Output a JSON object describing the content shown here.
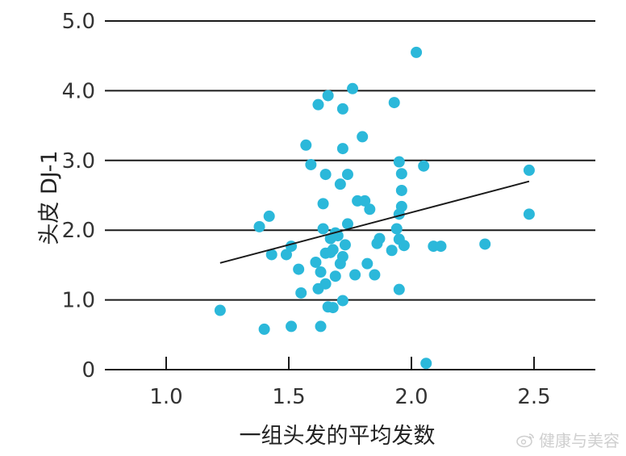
{
  "chart_data": {
    "type": "scatter",
    "xlabel": "一组头发的平均发数",
    "ylabel": "头皮 DJ-1",
    "xlim": [
      0.75,
      2.75
    ],
    "ylim": [
      0,
      5.0
    ],
    "x_ticks": [
      1.0,
      1.5,
      2.0,
      2.5
    ],
    "x_tick_labels": [
      "1.0",
      "1.5",
      "2.0",
      "2.5"
    ],
    "y_ticks": [
      0,
      1.0,
      2.0,
      3.0,
      4.0,
      5.0
    ],
    "y_tick_labels": [
      "0",
      "1.0",
      "2.0",
      "3.0",
      "4.0",
      "5.0"
    ],
    "grid": "horizontal",
    "colors": {
      "points": "#2bb8da",
      "trend": "#1a1a1a",
      "grid": "#1a1a1a",
      "text": "#333333"
    },
    "points": [
      {
        "x": 1.22,
        "y": 0.85
      },
      {
        "x": 1.38,
        "y": 2.05
      },
      {
        "x": 1.4,
        "y": 0.58
      },
      {
        "x": 1.42,
        "y": 2.2
      },
      {
        "x": 1.43,
        "y": 1.65
      },
      {
        "x": 1.49,
        "y": 1.65
      },
      {
        "x": 1.51,
        "y": 1.77
      },
      {
        "x": 1.51,
        "y": 0.62
      },
      {
        "x": 1.54,
        "y": 1.44
      },
      {
        "x": 1.55,
        "y": 1.1
      },
      {
        "x": 1.57,
        "y": 3.22
      },
      {
        "x": 1.59,
        "y": 2.94
      },
      {
        "x": 1.61,
        "y": 1.54
      },
      {
        "x": 1.62,
        "y": 3.8
      },
      {
        "x": 1.62,
        "y": 1.16
      },
      {
        "x": 1.63,
        "y": 0.62
      },
      {
        "x": 1.63,
        "y": 1.4
      },
      {
        "x": 1.64,
        "y": 2.38
      },
      {
        "x": 1.64,
        "y": 2.02
      },
      {
        "x": 1.65,
        "y": 2.8
      },
      {
        "x": 1.65,
        "y": 1.67
      },
      {
        "x": 1.65,
        "y": 1.23
      },
      {
        "x": 1.66,
        "y": 3.93
      },
      {
        "x": 1.66,
        "y": 0.9
      },
      {
        "x": 1.67,
        "y": 1.88
      },
      {
        "x": 1.67,
        "y": 1.68
      },
      {
        "x": 1.68,
        "y": 1.72
      },
      {
        "x": 1.68,
        "y": 0.89
      },
      {
        "x": 1.69,
        "y": 1.96
      },
      {
        "x": 1.69,
        "y": 1.34
      },
      {
        "x": 1.7,
        "y": 1.92
      },
      {
        "x": 1.71,
        "y": 2.66
      },
      {
        "x": 1.71,
        "y": 1.52
      },
      {
        "x": 1.72,
        "y": 3.74
      },
      {
        "x": 1.72,
        "y": 3.17
      },
      {
        "x": 1.72,
        "y": 1.62
      },
      {
        "x": 1.72,
        "y": 0.99
      },
      {
        "x": 1.73,
        "y": 1.79
      },
      {
        "x": 1.74,
        "y": 2.8
      },
      {
        "x": 1.74,
        "y": 2.09
      },
      {
        "x": 1.76,
        "y": 4.03
      },
      {
        "x": 1.77,
        "y": 1.36
      },
      {
        "x": 1.78,
        "y": 2.42
      },
      {
        "x": 1.8,
        "y": 3.34
      },
      {
        "x": 1.81,
        "y": 2.42
      },
      {
        "x": 1.82,
        "y": 1.52
      },
      {
        "x": 1.83,
        "y": 2.3
      },
      {
        "x": 1.85,
        "y": 1.36
      },
      {
        "x": 1.86,
        "y": 1.81
      },
      {
        "x": 1.87,
        "y": 1.88
      },
      {
        "x": 1.92,
        "y": 1.71
      },
      {
        "x": 1.93,
        "y": 3.83
      },
      {
        "x": 1.94,
        "y": 2.02
      },
      {
        "x": 1.95,
        "y": 2.98
      },
      {
        "x": 1.95,
        "y": 2.23
      },
      {
        "x": 1.95,
        "y": 1.87
      },
      {
        "x": 1.95,
        "y": 1.15
      },
      {
        "x": 1.96,
        "y": 2.81
      },
      {
        "x": 1.96,
        "y": 2.57
      },
      {
        "x": 1.96,
        "y": 2.34
      },
      {
        "x": 1.97,
        "y": 1.78
      },
      {
        "x": 2.02,
        "y": 4.55
      },
      {
        "x": 2.05,
        "y": 2.92
      },
      {
        "x": 2.06,
        "y": 0.09
      },
      {
        "x": 2.09,
        "y": 1.77
      },
      {
        "x": 2.12,
        "y": 1.77
      },
      {
        "x": 2.3,
        "y": 1.8
      },
      {
        "x": 2.48,
        "y": 2.86
      },
      {
        "x": 2.48,
        "y": 2.23
      }
    ],
    "trendline": {
      "x": [
        1.22,
        2.48
      ],
      "y": [
        1.53,
        2.7
      ]
    }
  },
  "watermark": {
    "icon": "weibo-icon",
    "text": "健康与美容"
  }
}
